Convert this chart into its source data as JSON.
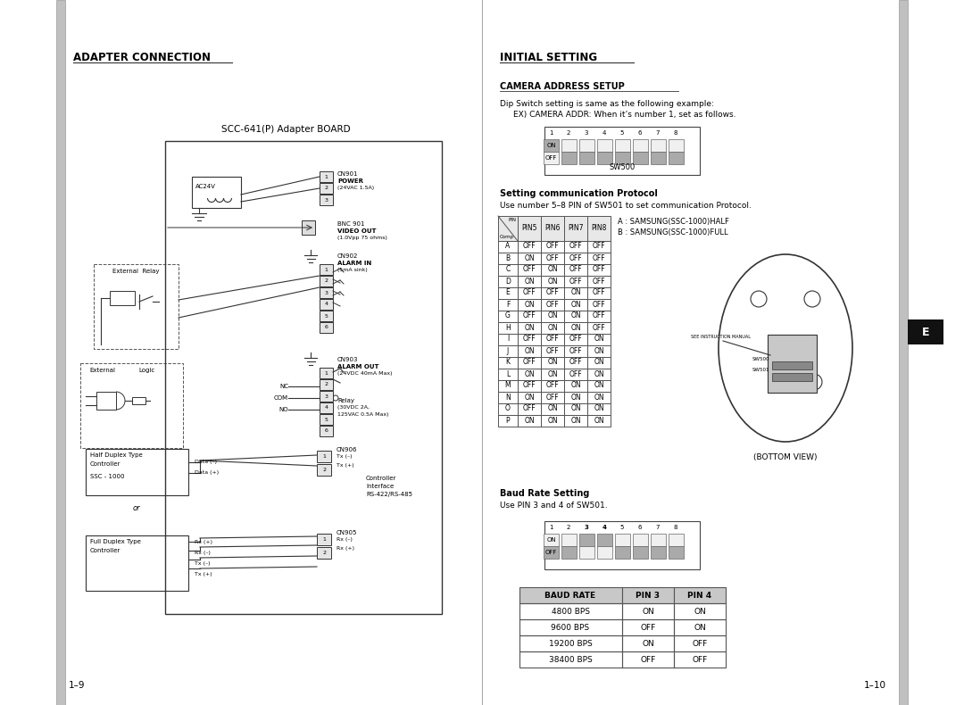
{
  "left_title": "ADAPTER CONNECTION",
  "right_title": "INITIAL SETTING",
  "page_left": "1–9",
  "page_right": "1–10",
  "board_title": "SCC-641(P) Adapter BOARD",
  "camera_address_title": "CAMERA ADDRESS SETUP",
  "camera_address_text1": "Dip Switch setting is same as the following example:",
  "camera_address_text2": "EX) CAMERA ADDR: When it’s number 1, set as follows.",
  "sw500_label": "SW500",
  "protocol_title": "Setting communication Protocol",
  "protocol_text": "Use number 5–8 PIN of SW501 to set communication Protocol.",
  "protocol_note1": "A : SAMSUNG(SSC-1000)HALF",
  "protocol_note2": "B : SAMSUNG(SSC-1000)FULL",
  "bottom_view_label": "(BOTTOM VIEW)",
  "baud_title": "Baud Rate Setting",
  "baud_text": "Use PIN 3 and 4 of SW501.",
  "tab_e_label": "E",
  "protocol_table_headers": [
    "PIN\nComp",
    "PIN5",
    "PIN6",
    "PIN7",
    "PIN8"
  ],
  "protocol_table_rows": [
    [
      "A",
      "OFF",
      "OFF",
      "OFF",
      "OFF"
    ],
    [
      "B",
      "ON",
      "OFF",
      "OFF",
      "OFF"
    ],
    [
      "C",
      "OFF",
      "ON",
      "OFF",
      "OFF"
    ],
    [
      "D",
      "ON",
      "ON",
      "OFF",
      "OFF"
    ],
    [
      "E",
      "OFF",
      "OFF",
      "ON",
      "OFF"
    ],
    [
      "F",
      "ON",
      "OFF",
      "ON",
      "OFF"
    ],
    [
      "G",
      "OFF",
      "ON",
      "ON",
      "OFF"
    ],
    [
      "H",
      "ON",
      "ON",
      "ON",
      "OFF"
    ],
    [
      "I",
      "OFF",
      "OFF",
      "OFF",
      "ON"
    ],
    [
      "J",
      "ON",
      "OFF",
      "OFF",
      "ON"
    ],
    [
      "K",
      "OFF",
      "ON",
      "OFF",
      "ON"
    ],
    [
      "L",
      "ON",
      "ON",
      "OFF",
      "ON"
    ],
    [
      "M",
      "OFF",
      "OFF",
      "ON",
      "ON"
    ],
    [
      "N",
      "ON",
      "OFF",
      "ON",
      "ON"
    ],
    [
      "O",
      "OFF",
      "ON",
      "ON",
      "ON"
    ],
    [
      "P",
      "ON",
      "ON",
      "ON",
      "ON"
    ]
  ],
  "baud_table_headers": [
    "BAUD RATE",
    "PIN 3",
    "PIN 4"
  ],
  "baud_table_rows": [
    [
      "4800 BPS",
      "ON",
      "ON"
    ],
    [
      "9600 BPS",
      "OFF",
      "ON"
    ],
    [
      "19200 BPS",
      "ON",
      "OFF"
    ],
    [
      "38400 BPS",
      "OFF",
      "OFF"
    ]
  ],
  "bg_color": "#ffffff",
  "table_header_bg": "#cccccc",
  "table_border": "#555555",
  "dip_switch_dark": "#aaaaaa",
  "dip_switch_light": "#f0f0f0",
  "side_bar_color": "#c0c0c0",
  "side_tab_bg": "#111111",
  "side_tab_fg": "#ffffff"
}
